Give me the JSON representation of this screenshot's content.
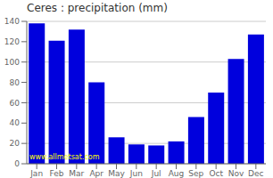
{
  "chart_data": {
    "type": "bar",
    "title": "Ceres : precipitation (mm)",
    "categories": [
      "Jan",
      "Feb",
      "Mar",
      "Apr",
      "May",
      "Jun",
      "Jul",
      "Aug",
      "Sep",
      "Oct",
      "Nov",
      "Dec"
    ],
    "values": [
      138,
      121,
      132,
      80,
      26,
      19,
      18,
      22,
      46,
      70,
      103,
      127
    ],
    "color": "#0000dd",
    "ylim": [
      0,
      140
    ],
    "yticks": [
      0,
      20,
      40,
      60,
      80,
      100,
      120,
      140
    ],
    "grid": true,
    "annotations": [
      "www.allmetsat.com"
    ]
  }
}
